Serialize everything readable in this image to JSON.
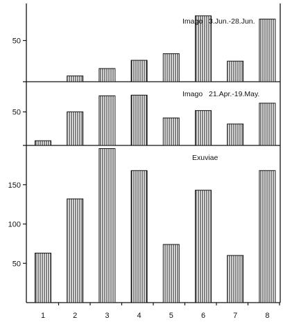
{
  "chart_data": [
    {
      "type": "bar",
      "panel_label": "Imago",
      "date_range": "3.Jun.-28.Jun.",
      "categories": [
        "1",
        "2",
        "3",
        "4",
        "5",
        "6",
        "7",
        "8"
      ],
      "values": [
        0,
        7,
        16,
        26,
        34,
        80,
        25,
        76
      ],
      "y_ticks": [
        "50"
      ],
      "ylim": [
        0,
        95
      ]
    },
    {
      "type": "bar",
      "panel_label": "Imago",
      "date_range": "21.Apr.-19.May.",
      "categories": [
        "1",
        "2",
        "3",
        "4",
        "5",
        "6",
        "7",
        "8"
      ],
      "values": [
        7,
        50,
        74,
        75,
        41,
        52,
        32,
        63
      ],
      "y_ticks": [
        "50"
      ],
      "ylim": [
        0,
        95
      ]
    },
    {
      "type": "bar",
      "panel_label": "Exuviae",
      "categories": [
        "1",
        "2",
        "3",
        "4",
        "5",
        "6",
        "7",
        "8"
      ],
      "values": [
        63,
        132,
        196,
        168,
        74,
        143,
        60,
        168
      ],
      "y_ticks": [
        "50",
        "100",
        "150"
      ],
      "ylim": [
        0,
        200
      ]
    }
  ],
  "colors": {
    "bar_fill": "hatched-vertical",
    "ink": "#111111",
    "background": "#ffffff"
  }
}
